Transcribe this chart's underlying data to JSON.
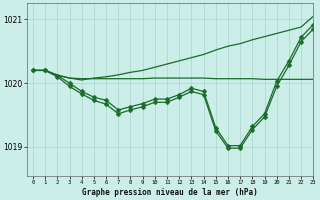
{
  "title": "Graphe pression niveau de la mer (hPa)",
  "bg_color": "#cceee8",
  "grid_color": "#aad4cc",
  "line_color": "#1a6b2a",
  "xlim": [
    -0.5,
    23
  ],
  "ylim": [
    1018.55,
    1021.25
  ],
  "yticks": [
    1019,
    1020,
    1021
  ],
  "xticks": [
    0,
    1,
    2,
    3,
    4,
    5,
    6,
    7,
    8,
    9,
    10,
    11,
    12,
    13,
    14,
    15,
    16,
    17,
    18,
    19,
    20,
    21,
    22,
    23
  ],
  "s_flat": [
    1020.2,
    1020.2,
    1020.12,
    1020.08,
    1020.07,
    1020.07,
    1020.07,
    1020.07,
    1020.07,
    1020.07,
    1020.08,
    1020.08,
    1020.08,
    1020.08,
    1020.08,
    1020.07,
    1020.07,
    1020.07,
    1020.07,
    1020.06,
    1020.06,
    1020.06,
    1020.06,
    1020.06
  ],
  "s_rise": [
    1020.2,
    1020.2,
    1020.13,
    1020.08,
    1020.05,
    1020.08,
    1020.1,
    1020.13,
    1020.17,
    1020.2,
    1020.25,
    1020.3,
    1020.35,
    1020.4,
    1020.45,
    1020.52,
    1020.58,
    1020.62,
    1020.68,
    1020.73,
    1020.78,
    1020.83,
    1020.88,
    1021.05
  ],
  "s_marked1": [
    1020.2,
    1020.2,
    1020.12,
    1020.0,
    1019.87,
    1019.78,
    1019.73,
    1019.58,
    1019.63,
    1019.68,
    1019.75,
    1019.75,
    1019.82,
    1019.92,
    1019.87,
    1019.3,
    1019.02,
    1019.02,
    1019.32,
    1019.52,
    1020.03,
    1020.35,
    1020.72,
    1020.92
  ],
  "s_marked2": [
    1020.2,
    1020.2,
    1020.1,
    1019.95,
    1019.83,
    1019.73,
    1019.67,
    1019.52,
    1019.58,
    1019.63,
    1019.7,
    1019.7,
    1019.78,
    1019.87,
    1019.82,
    1019.25,
    1018.98,
    1018.98,
    1019.27,
    1019.47,
    1019.95,
    1020.28,
    1020.65,
    1020.85
  ]
}
